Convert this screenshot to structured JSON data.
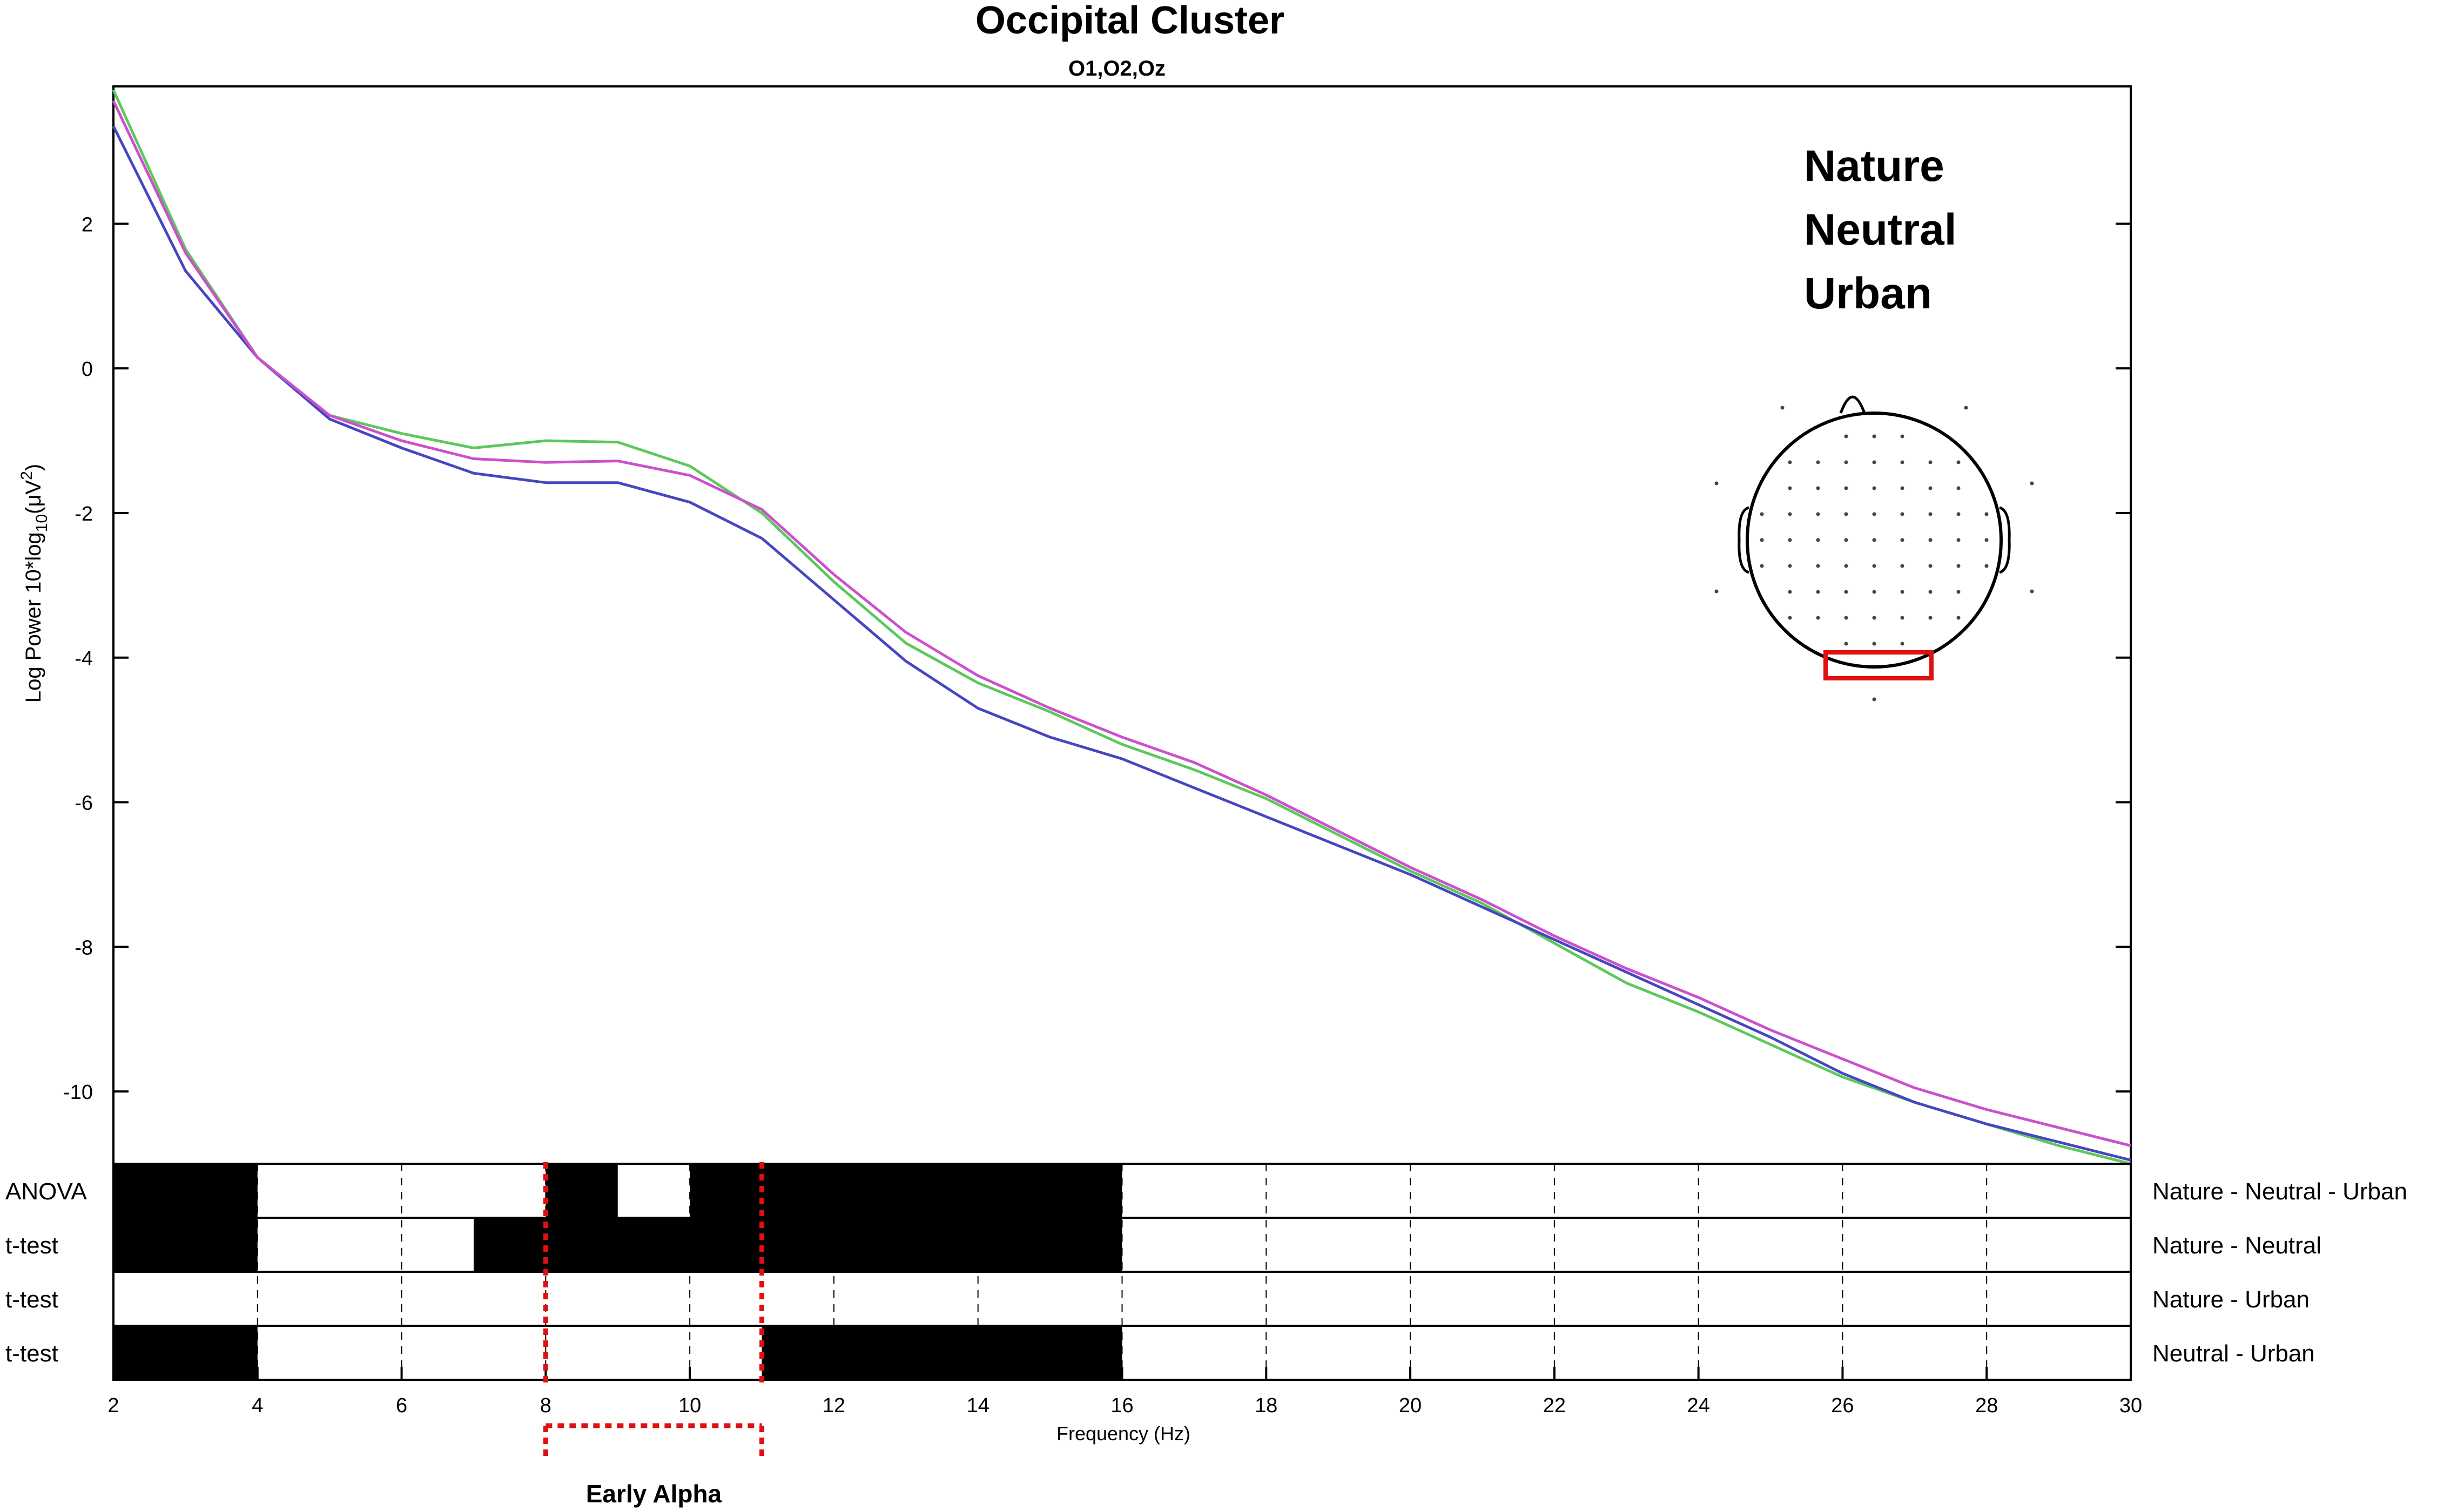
{
  "chart_data": {
    "type": "line",
    "title": "Occipital Cluster",
    "subtitle": "O1,O2,Oz",
    "xlabel": "Frequency (Hz)",
    "ylabel": "Log Power 10*log10(μV²)",
    "xlim": [
      2,
      30
    ],
    "ylim": [
      -11,
      3.9
    ],
    "xticks": [
      2,
      4,
      6,
      8,
      10,
      12,
      14,
      16,
      18,
      20,
      22,
      24,
      26,
      28,
      30
    ],
    "yticks": [
      2,
      0,
      -2,
      -4,
      -6,
      -8,
      -10
    ],
    "grid": false,
    "legend_position": "top-right",
    "x": [
      2,
      3,
      4,
      5,
      6,
      7,
      8,
      9,
      10,
      11,
      12,
      13,
      14,
      15,
      16,
      17,
      18,
      19,
      20,
      21,
      22,
      23,
      24,
      25,
      26,
      27,
      28,
      29,
      30
    ],
    "series": [
      {
        "name": "Nature",
        "color": "#5cc85c",
        "values": [
          3.85,
          1.65,
          0.15,
          -0.65,
          -0.9,
          -1.1,
          -1.0,
          -1.02,
          -1.35,
          -2.0,
          -2.95,
          -3.8,
          -4.35,
          -4.75,
          -5.2,
          -5.55,
          -5.95,
          -6.45,
          -6.95,
          -7.4,
          -7.95,
          -8.5,
          -8.9,
          -9.35,
          -9.8,
          -10.15,
          -10.45,
          -10.75,
          -11.0
        ]
      },
      {
        "name": "Neutral",
        "color": "#4646c0",
        "values": [
          3.35,
          1.35,
          0.15,
          -0.7,
          -1.1,
          -1.45,
          -1.58,
          -1.58,
          -1.85,
          -2.35,
          -3.2,
          -4.05,
          -4.7,
          -5.1,
          -5.4,
          -5.8,
          -6.2,
          -6.6,
          -7.0,
          -7.45,
          -7.9,
          -8.35,
          -8.8,
          -9.25,
          -9.75,
          -10.15,
          -10.45,
          -10.7,
          -10.95
        ]
      },
      {
        "name": "Urban",
        "color": "#cc4fcc",
        "values": [
          3.7,
          1.6,
          0.15,
          -0.65,
          -1.0,
          -1.25,
          -1.3,
          -1.28,
          -1.48,
          -1.95,
          -2.85,
          -3.65,
          -4.25,
          -4.7,
          -5.1,
          -5.45,
          -5.9,
          -6.4,
          -6.9,
          -7.35,
          -7.85,
          -8.3,
          -8.7,
          -9.15,
          -9.55,
          -9.95,
          -10.25,
          -10.5,
          -10.75
        ]
      }
    ],
    "significance": {
      "row_labels": [
        "ANOVA",
        "t-test",
        "t-test",
        "t-test"
      ],
      "comparisons": [
        "Nature - Neutral - Urban",
        "Nature - Neutral",
        "Nature - Urban",
        "Neutral - Urban"
      ],
      "significant_ranges": [
        [
          [
            2,
            4
          ],
          [
            8,
            9
          ],
          [
            10,
            16
          ]
        ],
        [
          [
            2,
            4
          ],
          [
            7,
            16
          ]
        ],
        [],
        [
          [
            2,
            4
          ],
          [
            11,
            16
          ]
        ]
      ]
    },
    "annotation": {
      "label": "Early Alpha",
      "range": [
        8,
        11
      ],
      "color": "#e01010"
    },
    "scalp_map": {
      "highlight_color": "#e01010"
    }
  }
}
